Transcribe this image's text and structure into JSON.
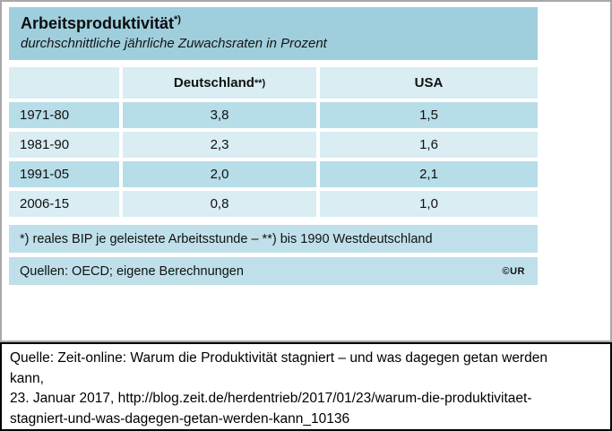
{
  "colors": {
    "title_band_bg": "#9fcedd",
    "light_row_bg": "#d9edf3",
    "dark_row_bg": "#b7dde8",
    "footnote_band_bg": "#bfe0ea",
    "top_frame_border": "#a8a8a8",
    "caption_border": "#000000",
    "text": "#111111"
  },
  "table": {
    "title": "Arbeitsproduktivität",
    "title_sup": "*)",
    "subtitle": "durchschnittliche jährliche Zuwachsraten in Prozent",
    "columns": {
      "col1": "",
      "col2": "Deutschland",
      "col2_sup": "**)",
      "col3": "USA"
    },
    "rows": [
      {
        "period": "1971-80",
        "deutschland": "3,8",
        "usa": "1,5"
      },
      {
        "period": "1981-90",
        "deutschland": "2,3",
        "usa": "1,6"
      },
      {
        "period": "1991-05",
        "deutschland": "2,0",
        "usa": "2,1"
      },
      {
        "period": "2006-15",
        "deutschland": "0,8",
        "usa": "1,0"
      }
    ],
    "footnote": "*) reales BIP je geleistete Arbeitsstunde – **) bis 1990 Westdeutschland",
    "source": "Quellen: OECD; eigene Berechnungen",
    "credit": "©UR"
  },
  "caption": {
    "lines": [
      "Quelle: Zeit-online: Warum die Produktivität stagniert – und was dagegen getan werden",
      "kann,",
      "23. Januar 2017, http://blog.zeit.de/herdentrieb/2017/01/23/warum-die-produktivitaet-",
      "stagniert-und-was-dagegen-getan-werden-kann_10136"
    ]
  },
  "chart_data": {
    "type": "table",
    "title": "Arbeitsproduktivität *)",
    "subtitle": "durchschnittliche jährliche Zuwachsraten in Prozent",
    "categories": [
      "1971-80",
      "1981-90",
      "1991-05",
      "2006-15"
    ],
    "series": [
      {
        "name": "Deutschland **)",
        "values": [
          3.8,
          2.3,
          2.0,
          0.8
        ]
      },
      {
        "name": "USA",
        "values": [
          1.5,
          1.6,
          2.1,
          1.0
        ]
      }
    ],
    "footnote": "*) reales BIP je geleistete Arbeitsstunde – **) bis 1990 Westdeutschland",
    "source": "Quellen: OECD; eigene Berechnungen",
    "unit": "Prozent"
  }
}
